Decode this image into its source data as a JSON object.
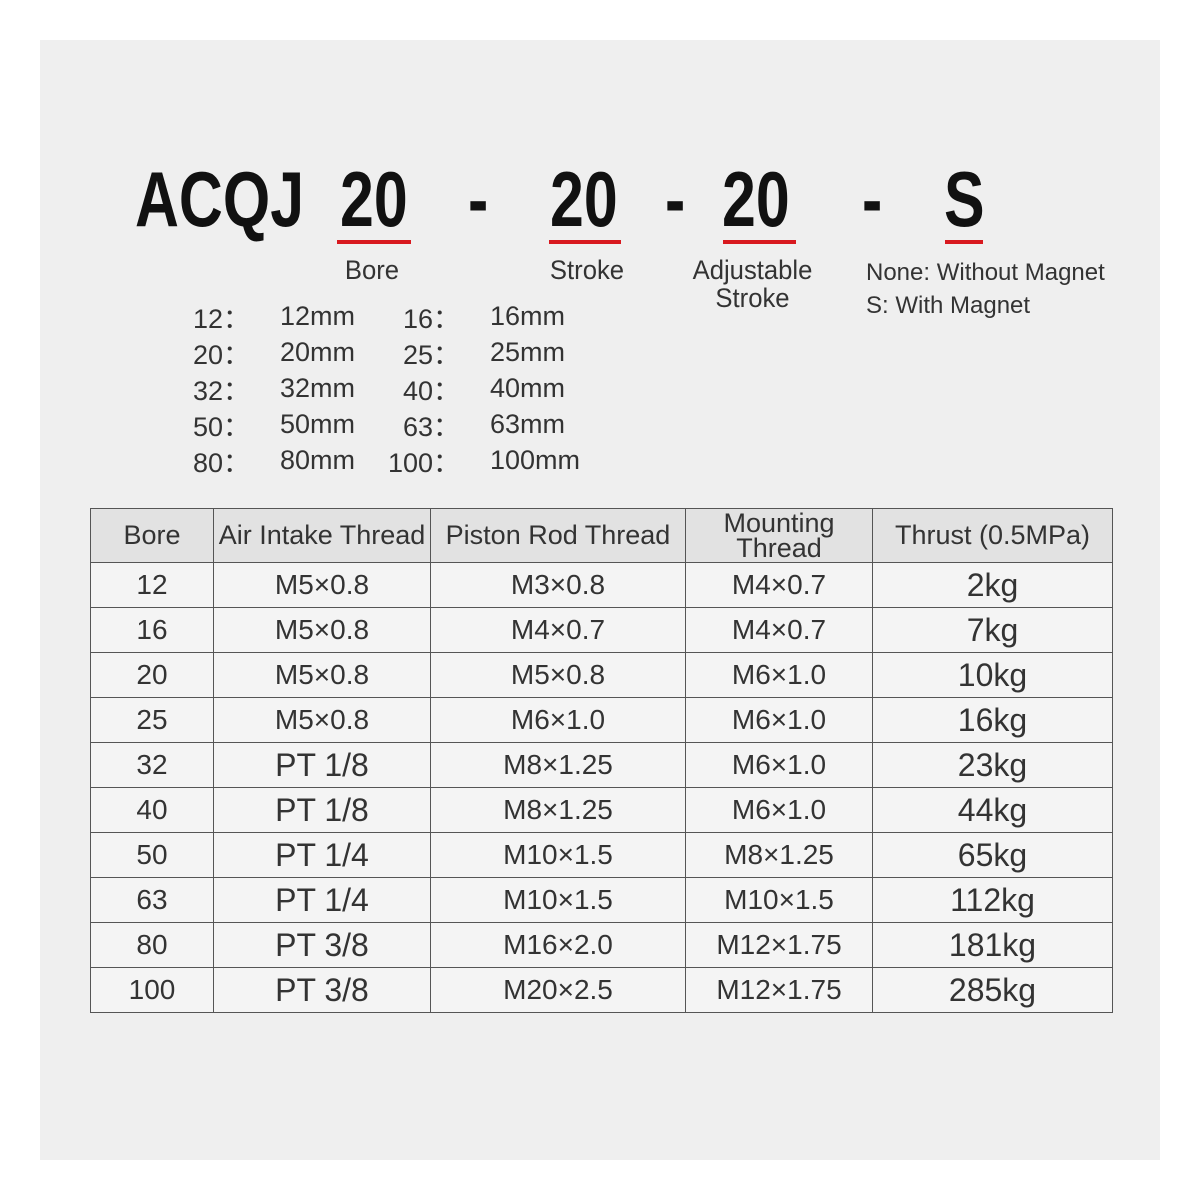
{
  "model_code": {
    "prefix": "ACQJ",
    "bore": "20",
    "stroke": "20",
    "adjustable_stroke": "20",
    "magnet": "S",
    "separator": "-"
  },
  "code_labels": {
    "bore": "Bore",
    "stroke": "Stroke",
    "adjustable_stroke_line1": "Adjustable",
    "adjustable_stroke_line2": "Stroke"
  },
  "magnet_legend": [
    "None: Without Magnet",
    "S: With Magnet"
  ],
  "accent_color": "#d8191f",
  "bore_options": [
    [
      {
        "k": "12：",
        "v": "12mm"
      },
      {
        "k": "16：",
        "v": "16mm"
      }
    ],
    [
      {
        "k": "20：",
        "v": "20mm"
      },
      {
        "k": "25：",
        "v": "25mm"
      }
    ],
    [
      {
        "k": "32：",
        "v": "32mm"
      },
      {
        "k": "40：",
        "v": "40mm"
      }
    ],
    [
      {
        "k": "50：",
        "v": "50mm"
      },
      {
        "k": "63：",
        "v": "63mm"
      }
    ],
    [
      {
        "k": "80：",
        "v": "80mm"
      },
      {
        "k": "100：",
        "v": "100mm"
      }
    ]
  ],
  "table": {
    "headers": [
      "Bore",
      "Air Intake Thread",
      "Piston Rod Thread",
      "Mounting Thread",
      "Thrust (0.5MPa)"
    ],
    "rows": [
      [
        "12",
        "M5×0.8",
        "M3×0.8",
        "M4×0.7",
        "2kg"
      ],
      [
        "16",
        "M5×0.8",
        "M4×0.7",
        "M4×0.7",
        "7kg"
      ],
      [
        "20",
        "M5×0.8",
        "M5×0.8",
        "M6×1.0",
        "10kg"
      ],
      [
        "25",
        "M5×0.8",
        "M6×1.0",
        "M6×1.0",
        "16kg"
      ],
      [
        "32",
        "PT 1/8",
        "M8×1.25",
        "M6×1.0",
        "23kg"
      ],
      [
        "40",
        "PT 1/8",
        "M8×1.25",
        "M6×1.0",
        "44kg"
      ],
      [
        "50",
        "PT 1/4",
        "M10×1.5",
        "M8×1.25",
        "65kg"
      ],
      [
        "63",
        "PT 1/4",
        "M10×1.5",
        "M10×1.5",
        "112kg"
      ],
      [
        "80",
        "PT 3/8",
        "M16×2.0",
        "M12×1.75",
        "181kg"
      ],
      [
        "100",
        "PT 3/8",
        "M20×2.5",
        "M12×1.75",
        "285kg"
      ]
    ]
  }
}
